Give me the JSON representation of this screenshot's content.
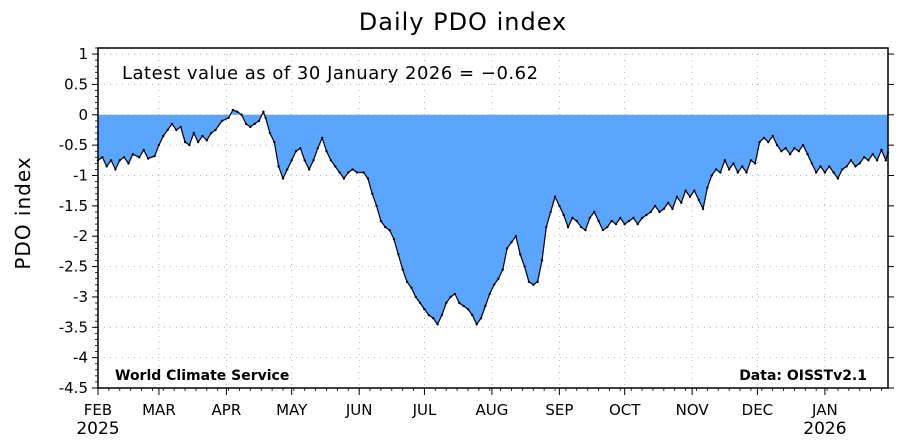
{
  "chart_data": {
    "type": "area",
    "title": "Daily PDO index",
    "ylabel": "PDO index",
    "xlabel": "",
    "ylim": [
      -4.5,
      1.1
    ],
    "yticks": [
      1,
      0.5,
      0,
      -0.5,
      -1,
      -1.5,
      -2,
      -2.5,
      -3,
      -3.5,
      -4,
      -4.5
    ],
    "ytick_labels": [
      "1",
      "0.5",
      "0",
      "-0.5",
      "-1",
      "-1.5",
      "-2",
      "-2.5",
      "-3",
      "-3.5",
      "-4",
      "-4.5"
    ],
    "x_range": [
      "2025-02-01",
      "2026-01-30"
    ],
    "months": [
      {
        "label": "FEB",
        "date": "2025-02-01"
      },
      {
        "label": "MAR",
        "date": "2025-03-01"
      },
      {
        "label": "APR",
        "date": "2025-04-01"
      },
      {
        "label": "MAY",
        "date": "2025-05-01"
      },
      {
        "label": "JUN",
        "date": "2025-06-01"
      },
      {
        "label": "JUL",
        "date": "2025-07-01"
      },
      {
        "label": "AUG",
        "date": "2025-08-01"
      },
      {
        "label": "SEP",
        "date": "2025-09-01"
      },
      {
        "label": "OCT",
        "date": "2025-10-01"
      },
      {
        "label": "NOV",
        "date": "2025-11-01"
      },
      {
        "label": "DEC",
        "date": "2025-12-01"
      },
      {
        "label": "JAN",
        "date": "2026-01-01"
      }
    ],
    "years": [
      {
        "label": "2025",
        "date": "2025-02-01"
      },
      {
        "label": "2026",
        "date": "2026-01-01"
      }
    ],
    "annotation": "Latest value as of 30 January 2026 = −0.62",
    "credit_left": "World Climate Service",
    "credit_right": "Data: OISSTv2.1",
    "grid": true,
    "fill_color": "#5aa5ff",
    "line_color": "#000000",
    "series": [
      {
        "points": [
          [
            "2025-02-01",
            -0.75
          ],
          [
            "2025-02-03",
            -0.7
          ],
          [
            "2025-02-05",
            -0.85
          ],
          [
            "2025-02-07",
            -0.75
          ],
          [
            "2025-02-09",
            -0.9
          ],
          [
            "2025-02-11",
            -0.75
          ],
          [
            "2025-02-13",
            -0.7
          ],
          [
            "2025-02-15",
            -0.8
          ],
          [
            "2025-02-17",
            -0.65
          ],
          [
            "2025-02-20",
            -0.7
          ],
          [
            "2025-02-22",
            -0.58
          ],
          [
            "2025-02-24",
            -0.72
          ],
          [
            "2025-02-27",
            -0.68
          ],
          [
            "2025-03-01",
            -0.5
          ],
          [
            "2025-03-03",
            -0.35
          ],
          [
            "2025-03-05",
            -0.25
          ],
          [
            "2025-03-07",
            -0.15
          ],
          [
            "2025-03-09",
            -0.25
          ],
          [
            "2025-03-11",
            -0.2
          ],
          [
            "2025-03-13",
            -0.45
          ],
          [
            "2025-03-15",
            -0.5
          ],
          [
            "2025-03-17",
            -0.3
          ],
          [
            "2025-03-19",
            -0.45
          ],
          [
            "2025-03-21",
            -0.35
          ],
          [
            "2025-03-23",
            -0.42
          ],
          [
            "2025-03-25",
            -0.3
          ],
          [
            "2025-03-27",
            -0.25
          ],
          [
            "2025-03-30",
            -0.1
          ],
          [
            "2025-04-02",
            -0.05
          ],
          [
            "2025-04-04",
            0.08
          ],
          [
            "2025-04-06",
            0.05
          ],
          [
            "2025-04-08",
            0.0
          ],
          [
            "2025-04-10",
            -0.15
          ],
          [
            "2025-04-12",
            -0.2
          ],
          [
            "2025-04-14",
            -0.15
          ],
          [
            "2025-04-16",
            -0.1
          ],
          [
            "2025-04-18",
            0.05
          ],
          [
            "2025-04-19",
            -0.05
          ],
          [
            "2025-04-21",
            -0.3
          ],
          [
            "2025-04-23",
            -0.45
          ],
          [
            "2025-04-25",
            -0.85
          ],
          [
            "2025-04-27",
            -1.05
          ],
          [
            "2025-04-29",
            -0.9
          ],
          [
            "2025-05-01",
            -0.75
          ],
          [
            "2025-05-03",
            -0.6
          ],
          [
            "2025-05-05",
            -0.55
          ],
          [
            "2025-05-07",
            -0.75
          ],
          [
            "2025-05-09",
            -0.9
          ],
          [
            "2025-05-11",
            -0.75
          ],
          [
            "2025-05-13",
            -0.55
          ],
          [
            "2025-05-15",
            -0.38
          ],
          [
            "2025-05-17",
            -0.6
          ],
          [
            "2025-05-19",
            -0.75
          ],
          [
            "2025-05-21",
            -0.85
          ],
          [
            "2025-05-23",
            -0.95
          ],
          [
            "2025-05-25",
            -1.05
          ],
          [
            "2025-05-27",
            -0.95
          ],
          [
            "2025-05-29",
            -0.9
          ],
          [
            "2025-05-31",
            -0.95
          ],
          [
            "2025-06-03",
            -0.95
          ],
          [
            "2025-06-05",
            -1.05
          ],
          [
            "2025-06-07",
            -1.3
          ],
          [
            "2025-06-09",
            -1.5
          ],
          [
            "2025-06-11",
            -1.75
          ],
          [
            "2025-06-13",
            -1.85
          ],
          [
            "2025-06-15",
            -1.9
          ],
          [
            "2025-06-17",
            -2.05
          ],
          [
            "2025-06-19",
            -2.3
          ],
          [
            "2025-06-21",
            -2.55
          ],
          [
            "2025-06-23",
            -2.75
          ],
          [
            "2025-06-25",
            -2.85
          ],
          [
            "2025-06-27",
            -3.0
          ],
          [
            "2025-06-29",
            -3.1
          ],
          [
            "2025-07-01",
            -3.2
          ],
          [
            "2025-07-03",
            -3.3
          ],
          [
            "2025-07-05",
            -3.35
          ],
          [
            "2025-07-07",
            -3.45
          ],
          [
            "2025-07-09",
            -3.3
          ],
          [
            "2025-07-11",
            -3.1
          ],
          [
            "2025-07-13",
            -3.0
          ],
          [
            "2025-07-15",
            -2.95
          ],
          [
            "2025-07-17",
            -3.1
          ],
          [
            "2025-07-19",
            -3.15
          ],
          [
            "2025-07-21",
            -3.2
          ],
          [
            "2025-07-23",
            -3.3
          ],
          [
            "2025-07-25",
            -3.45
          ],
          [
            "2025-07-27",
            -3.35
          ],
          [
            "2025-07-29",
            -3.15
          ],
          [
            "2025-07-31",
            -2.95
          ],
          [
            "2025-08-02",
            -2.8
          ],
          [
            "2025-08-04",
            -2.7
          ],
          [
            "2025-08-06",
            -2.55
          ],
          [
            "2025-08-08",
            -2.2
          ],
          [
            "2025-08-10",
            -2.1
          ],
          [
            "2025-08-12",
            -2.0
          ],
          [
            "2025-08-14",
            -2.3
          ],
          [
            "2025-08-16",
            -2.5
          ],
          [
            "2025-08-18",
            -2.75
          ],
          [
            "2025-08-20",
            -2.8
          ],
          [
            "2025-08-22",
            -2.75
          ],
          [
            "2025-08-24",
            -2.4
          ],
          [
            "2025-08-26",
            -1.85
          ],
          [
            "2025-08-28",
            -1.6
          ],
          [
            "2025-08-30",
            -1.35
          ],
          [
            "2025-09-01",
            -1.5
          ],
          [
            "2025-09-03",
            -1.65
          ],
          [
            "2025-09-05",
            -1.85
          ],
          [
            "2025-09-07",
            -1.7
          ],
          [
            "2025-09-09",
            -1.75
          ],
          [
            "2025-09-11",
            -1.85
          ],
          [
            "2025-09-13",
            -1.9
          ],
          [
            "2025-09-15",
            -1.7
          ],
          [
            "2025-09-17",
            -1.6
          ],
          [
            "2025-09-19",
            -1.75
          ],
          [
            "2025-09-21",
            -1.9
          ],
          [
            "2025-09-23",
            -1.85
          ],
          [
            "2025-09-25",
            -1.75
          ],
          [
            "2025-09-27",
            -1.8
          ],
          [
            "2025-09-29",
            -1.7
          ],
          [
            "2025-10-01",
            -1.8
          ],
          [
            "2025-10-03",
            -1.75
          ],
          [
            "2025-10-05",
            -1.7
          ],
          [
            "2025-10-07",
            -1.8
          ],
          [
            "2025-10-09",
            -1.7
          ],
          [
            "2025-10-11",
            -1.65
          ],
          [
            "2025-10-13",
            -1.6
          ],
          [
            "2025-10-15",
            -1.5
          ],
          [
            "2025-10-17",
            -1.6
          ],
          [
            "2025-10-19",
            -1.55
          ],
          [
            "2025-10-21",
            -1.45
          ],
          [
            "2025-10-23",
            -1.55
          ],
          [
            "2025-10-25",
            -1.35
          ],
          [
            "2025-10-27",
            -1.45
          ],
          [
            "2025-10-29",
            -1.25
          ],
          [
            "2025-10-31",
            -1.35
          ],
          [
            "2025-11-02",
            -1.25
          ],
          [
            "2025-11-04",
            -1.4
          ],
          [
            "2025-11-06",
            -1.55
          ],
          [
            "2025-11-08",
            -1.2
          ],
          [
            "2025-11-10",
            -1.0
          ],
          [
            "2025-11-12",
            -0.9
          ],
          [
            "2025-11-14",
            -0.95
          ],
          [
            "2025-11-16",
            -0.75
          ],
          [
            "2025-11-18",
            -0.9
          ],
          [
            "2025-11-20",
            -0.8
          ],
          [
            "2025-11-22",
            -0.95
          ],
          [
            "2025-11-24",
            -0.85
          ],
          [
            "2025-11-26",
            -0.95
          ],
          [
            "2025-11-28",
            -0.75
          ],
          [
            "2025-11-30",
            -0.8
          ],
          [
            "2025-12-02",
            -0.45
          ],
          [
            "2025-12-04",
            -0.38
          ],
          [
            "2025-12-06",
            -0.45
          ],
          [
            "2025-12-08",
            -0.35
          ],
          [
            "2025-12-10",
            -0.5
          ],
          [
            "2025-12-12",
            -0.6
          ],
          [
            "2025-12-14",
            -0.55
          ],
          [
            "2025-12-16",
            -0.65
          ],
          [
            "2025-12-18",
            -0.55
          ],
          [
            "2025-12-20",
            -0.6
          ],
          [
            "2025-12-22",
            -0.5
          ],
          [
            "2025-12-24",
            -0.65
          ],
          [
            "2025-12-26",
            -0.8
          ],
          [
            "2025-12-28",
            -0.95
          ],
          [
            "2025-12-30",
            -0.85
          ],
          [
            "2026-01-01",
            -0.95
          ],
          [
            "2026-01-03",
            -0.85
          ],
          [
            "2026-01-05",
            -0.95
          ],
          [
            "2026-01-07",
            -1.05
          ],
          [
            "2026-01-09",
            -0.9
          ],
          [
            "2026-01-11",
            -0.85
          ],
          [
            "2026-01-13",
            -0.75
          ],
          [
            "2026-01-15",
            -0.85
          ],
          [
            "2026-01-17",
            -0.8
          ],
          [
            "2026-01-19",
            -0.7
          ],
          [
            "2026-01-21",
            -0.75
          ],
          [
            "2026-01-23",
            -0.65
          ],
          [
            "2026-01-25",
            -0.75
          ],
          [
            "2026-01-27",
            -0.58
          ],
          [
            "2026-01-29",
            -0.75
          ],
          [
            "2026-01-30",
            -0.62
          ]
        ]
      }
    ]
  }
}
